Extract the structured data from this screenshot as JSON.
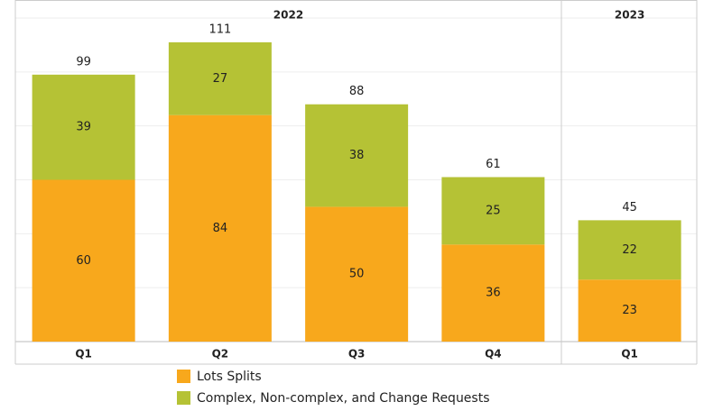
{
  "chart_data": {
    "type": "stacked_bar",
    "groups": [
      {
        "name": "2022",
        "categories": [
          "Q1",
          "Q2",
          "Q3",
          "Q4"
        ]
      },
      {
        "name": "2023",
        "categories": [
          "Q1"
        ]
      }
    ],
    "series": [
      {
        "name": "Lots Splits",
        "color": "#f8a81c",
        "values": [
          60,
          84,
          50,
          36,
          23
        ]
      },
      {
        "name": "Complex, Non-complex, and Change Requests",
        "color": "#b5c235",
        "values": [
          39,
          27,
          38,
          25,
          22
        ]
      }
    ],
    "totals": [
      99,
      111,
      88,
      61,
      45
    ],
    "ylim": [
      0,
      120
    ],
    "yticks": [
      0,
      20,
      40,
      60,
      80,
      100,
      120
    ],
    "grid": true
  }
}
